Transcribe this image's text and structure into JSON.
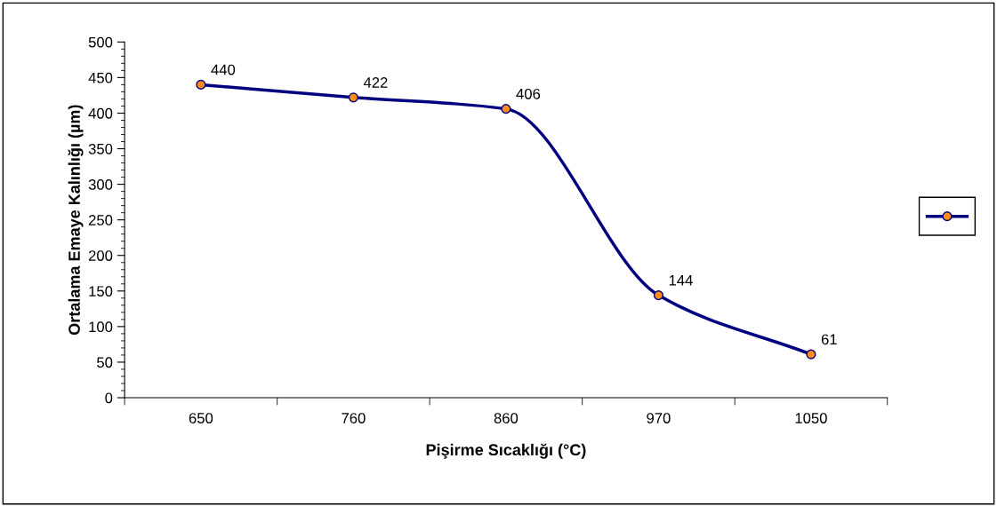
{
  "chart_data": {
    "type": "line",
    "xlabel": "Pişirme Sıcaklığı (°C)",
    "ylabel": "Ortalama Emaye Kalınlığı (µm)",
    "categories": [
      "650",
      "760",
      "860",
      "970",
      "1050"
    ],
    "series": [
      {
        "color": "#000080",
        "values": [
          440,
          422,
          406,
          144,
          61
        ]
      }
    ],
    "ylim": [
      0,
      500
    ],
    "yticks": [
      0,
      50,
      100,
      150,
      200,
      250,
      300,
      350,
      400,
      450,
      500
    ],
    "data_labels": true,
    "marker": "circle",
    "line_style": "solid",
    "grid": false
  }
}
